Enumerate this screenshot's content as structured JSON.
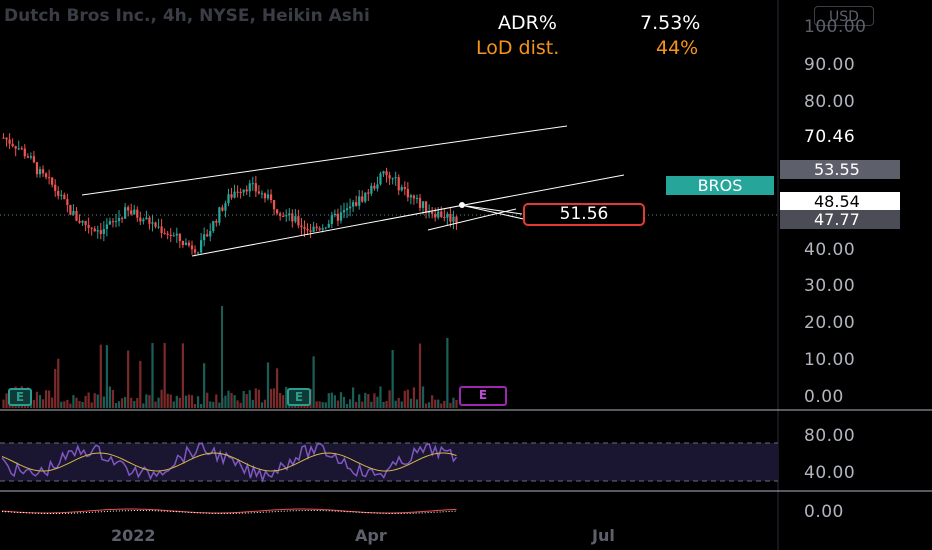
{
  "chart_title": "Dutch Bros Inc., 4h, NYSE, Heikin Ashi",
  "currency_button": "USD",
  "stats": {
    "adr_label": "ADR%",
    "adr_value": "7.53%",
    "lod_label": "LoD dist.",
    "lod_value": "44%"
  },
  "price_axis": {
    "ticks": [
      "100.00",
      "90.00",
      "80.00",
      "70.46",
      "40.00",
      "30.00",
      "20.00",
      "10.00",
      "0.00"
    ],
    "symbol_tag": "BROS",
    "tag_53": "53.55",
    "tag_48": "48.54",
    "tag_47": "47.77"
  },
  "callout_value": "51.56",
  "rsi_axis": {
    "ticks": [
      "80.00",
      "40.00"
    ]
  },
  "macd_axis": {
    "ticks": [
      "0.00"
    ]
  },
  "time_axis": {
    "labels": [
      "2022",
      "Apr",
      "Jul"
    ]
  },
  "earnings_badge": "E",
  "colors": {
    "up": "#26a69a",
    "down": "#ef5350",
    "rsi": "#7e57c2",
    "rsi_ma": "#d4b84a",
    "stat_white": "#ffffff",
    "stat_orange": "#f7931a",
    "tag_teal": "#26a69a",
    "tag_gray": "#5d606b"
  },
  "chart_data": {
    "type": "candlestick",
    "title": "Dutch Bros Inc., 4h, NYSE, Heikin Ashi",
    "price_axis_range": [
      0,
      100
    ],
    "ohlc_approx_closes": [
      70,
      68,
      65,
      60,
      57,
      52,
      48,
      46,
      45,
      47,
      50,
      49,
      47,
      45,
      43,
      41,
      40,
      46,
      52,
      56,
      57,
      55,
      52,
      49,
      47,
      45,
      46,
      48,
      50,
      53,
      56,
      60,
      58,
      55,
      52,
      50,
      49,
      47.77
    ],
    "rsi_range": [
      0,
      100
    ],
    "rsi_levels": [
      70,
      30
    ],
    "current_price": 47.77,
    "previous_close": 48.54,
    "marked_price": 51.56,
    "high_marker": 70.46,
    "level_marker": 53.55
  }
}
